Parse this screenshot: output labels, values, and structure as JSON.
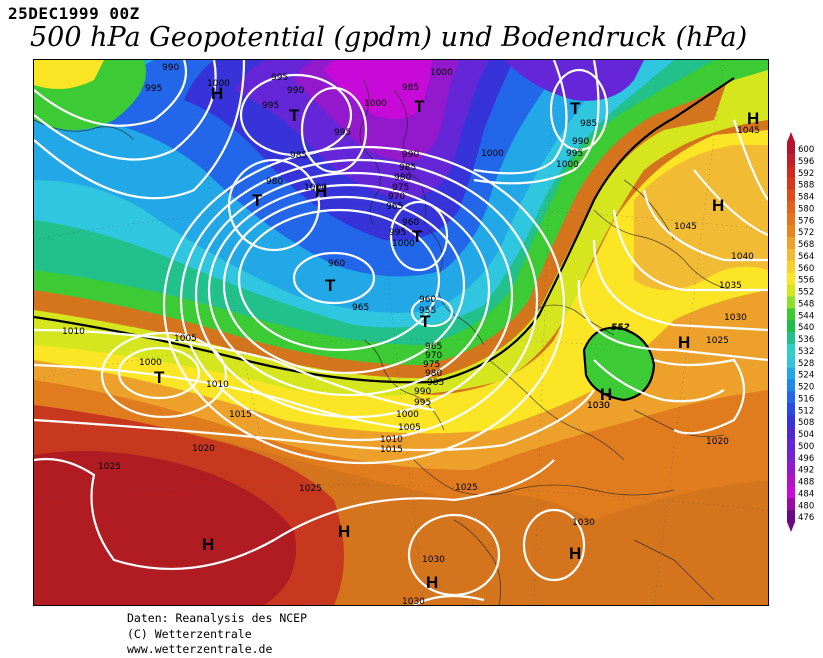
{
  "header": {
    "date": "25DEC1999 00Z",
    "title": "500 hPa Geopotential (gpdm) und Bodendruck (hPa)"
  },
  "credits": {
    "line1": "Daten: Reanalysis des NCEP",
    "line2": "(C) Wetterzentrale",
    "line3": "www.wetterzentrale.de"
  },
  "legend": {
    "levels": [
      "600",
      "596",
      "592",
      "588",
      "584",
      "580",
      "576",
      "572",
      "568",
      "564",
      "560",
      "556",
      "552",
      "548",
      "544",
      "540",
      "536",
      "532",
      "528",
      "524",
      "520",
      "516",
      "512",
      "508",
      "504",
      "500",
      "496",
      "492",
      "488",
      "484",
      "480",
      "476"
    ],
    "colors": [
      "#b4142e",
      "#c41c2a",
      "#cc2a20",
      "#d6381c",
      "#dd4e1c",
      "#e2621d",
      "#e4741e",
      "#e8861e",
      "#eda12a",
      "#f2bb34",
      "#f7d12c",
      "#fbe524",
      "#d6e61e",
      "#8fe02a",
      "#3ccb34",
      "#1ebc4a",
      "#22c08a",
      "#2ed0c4",
      "#30c6e0",
      "#22a8e6",
      "#1e88e8",
      "#2266ea",
      "#2a48e8",
      "#3634d8",
      "#4c2ad2",
      "#6426d6",
      "#7a22d0",
      "#9418cc",
      "#b012c4",
      "#c80ad8",
      "#9a0aa8",
      "#6a0a80"
    ]
  },
  "map": {
    "fills_gpdm": {
      "warm_subtropics": "580",
      "azores_core": "584",
      "central_europe": "560",
      "ne_ridge": "564",
      "north_atlantic_trough": "524",
      "scandinavian_low": "508",
      "arctic_core": "492",
      "italy_cutoff": "548"
    },
    "contour_552_label": "552",
    "isobar_labels": [
      "990",
      "995",
      "1000",
      "1000",
      "995",
      "990",
      "985",
      "1000",
      "995",
      "995",
      "1000",
      "985",
      "990",
      "995",
      "1000",
      "1045",
      "985",
      "990",
      "980",
      "985",
      "1000",
      "980",
      "975",
      "970",
      "965",
      "1045",
      "1040",
      "1035",
      "1030",
      "960",
      "960",
      "965",
      "955",
      "960",
      "1025",
      "1030",
      "1010",
      "1005",
      "1000",
      "965",
      "970",
      "975",
      "980",
      "985",
      "990",
      "995",
      "1000",
      "1005",
      "1010",
      "1015",
      "1010",
      "1015",
      "1020",
      "1025",
      "1025",
      "1025",
      "1030",
      "1030",
      "1030",
      "1020",
      "1030",
      "995",
      "1000"
    ],
    "pressure_centers": [
      "H",
      "T",
      "T",
      "T",
      "H",
      "T",
      "T",
      "H",
      "H",
      "H",
      "T",
      "H",
      "T",
      "T",
      "H",
      "H",
      "H",
      "H"
    ]
  }
}
